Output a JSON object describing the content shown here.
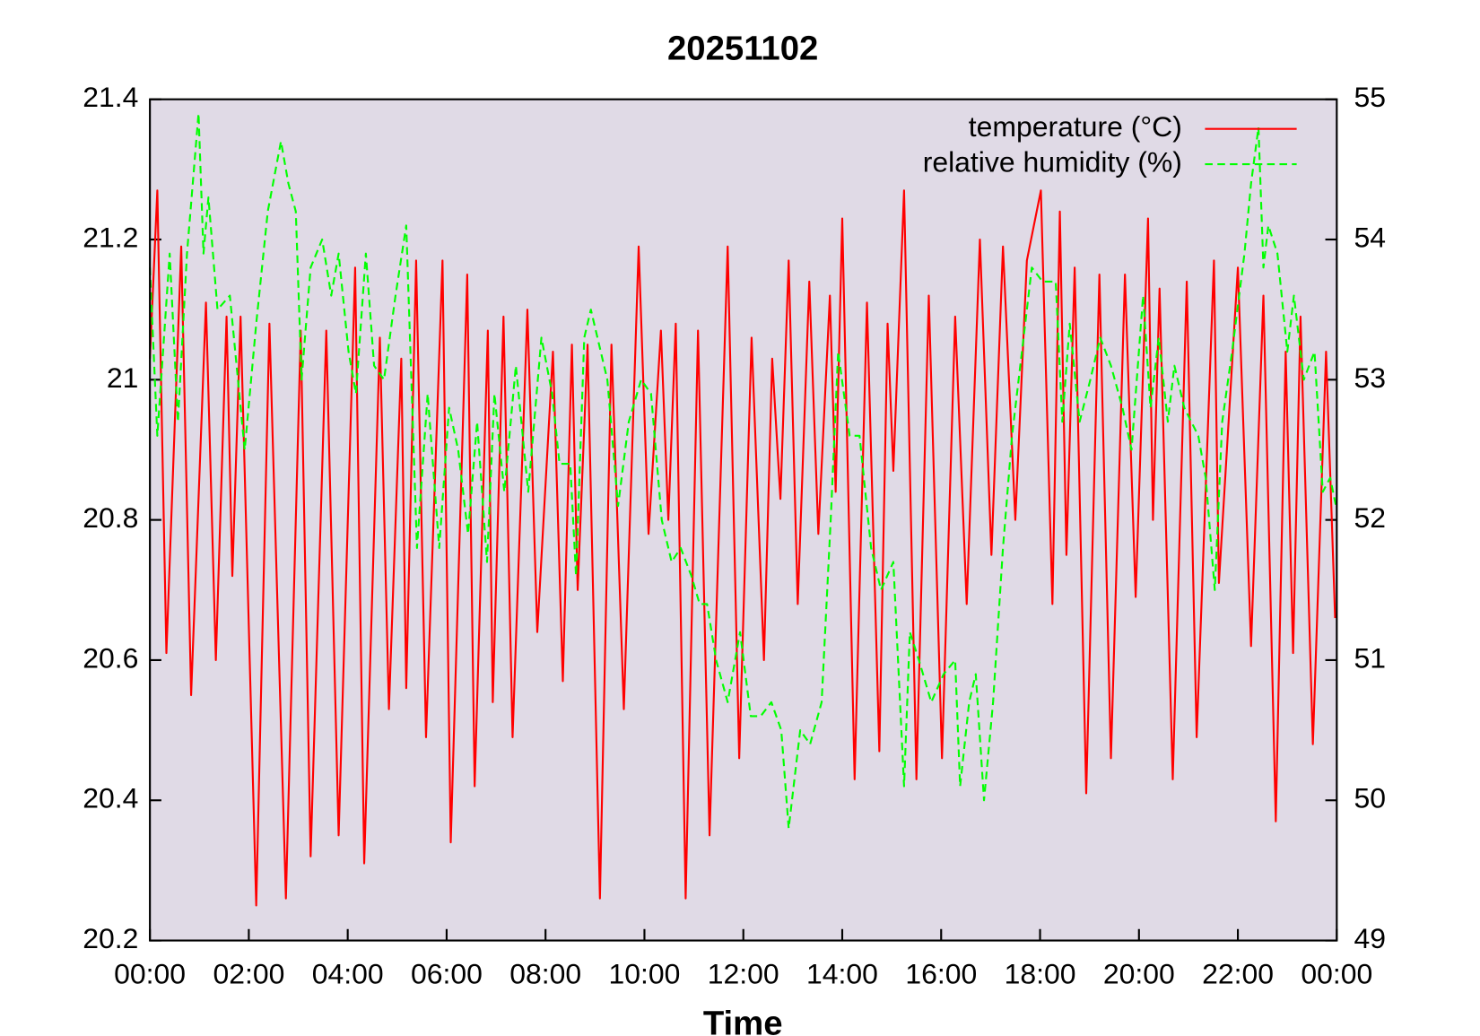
{
  "chart_data": {
    "type": "line",
    "title": "20251102",
    "xlabel": "Time",
    "xlim": [
      0,
      1440
    ],
    "xticks": [
      {
        "value": 0,
        "label": "00:00"
      },
      {
        "value": 120,
        "label": "02:00"
      },
      {
        "value": 240,
        "label": "04:00"
      },
      {
        "value": 360,
        "label": "06:00"
      },
      {
        "value": 480,
        "label": "08:00"
      },
      {
        "value": 600,
        "label": "10:00"
      },
      {
        "value": 720,
        "label": "12:00"
      },
      {
        "value": 840,
        "label": "14:00"
      },
      {
        "value": 960,
        "label": "16:00"
      },
      {
        "value": 1080,
        "label": "18:00"
      },
      {
        "value": 1200,
        "label": "20:00"
      },
      {
        "value": 1320,
        "label": "22:00"
      },
      {
        "value": 1440,
        "label": "00:00"
      }
    ],
    "ylim": [
      20.2,
      21.4
    ],
    "yticks": [
      20.2,
      20.4,
      20.6,
      20.8,
      21,
      21.2,
      21.4
    ],
    "y2lim": [
      49,
      55
    ],
    "y2ticks": [
      49,
      50,
      51,
      52,
      53,
      54,
      55
    ],
    "background": "#e0dae6",
    "legend": "top-right",
    "series": [
      {
        "name": "temperature (°C)",
        "color": "#ff0000",
        "line_style": "solid",
        "x": [
          0,
          9,
          20,
          38,
          50,
          68,
          80,
          93,
          100,
          110,
          129,
          145,
          165,
          183,
          195,
          214,
          229,
          249,
          260,
          279,
          290,
          305,
          311,
          323,
          335,
          355,
          365,
          385,
          394,
          410,
          416,
          429,
          440,
          458,
          470,
          489,
          501,
          512,
          519,
          531,
          546,
          560,
          575,
          593,
          605,
          620,
          629,
          638,
          650,
          665,
          679,
          701,
          715,
          730,
          745,
          755,
          765,
          775,
          786,
          800,
          811,
          825,
          832,
          840,
          855,
          870,
          885,
          895,
          902,
          915,
          930,
          945,
          961,
          977,
          991,
          1007,
          1021,
          1035,
          1050,
          1064,
          1081,
          1095,
          1104,
          1112,
          1122,
          1136,
          1152,
          1166,
          1183,
          1196,
          1211,
          1217,
          1225,
          1241,
          1258,
          1270,
          1291,
          1297,
          1320,
          1336,
          1351,
          1366,
          1378,
          1387,
          1396,
          1411,
          1427,
          1438
        ],
        "values": [
          21.03,
          21.27,
          20.61,
          21.19,
          20.55,
          21.11,
          20.6,
          21.09,
          20.72,
          21.09,
          20.25,
          21.08,
          20.26,
          21.07,
          20.32,
          21.07,
          20.35,
          21.16,
          20.31,
          21.06,
          20.53,
          21.03,
          20.56,
          21.17,
          20.49,
          21.17,
          20.34,
          21.15,
          20.42,
          21.07,
          20.54,
          21.09,
          20.49,
          21.1,
          20.64,
          21.04,
          20.57,
          21.05,
          20.7,
          21.05,
          20.26,
          21.05,
          20.53,
          21.19,
          20.78,
          21.07,
          20.8,
          21.08,
          20.26,
          21.07,
          20.35,
          21.19,
          20.46,
          21.06,
          20.6,
          21.03,
          20.83,
          21.17,
          20.68,
          21.14,
          20.78,
          21.12,
          20.84,
          21.23,
          20.43,
          21.11,
          20.47,
          21.08,
          20.87,
          21.27,
          20.43,
          21.12,
          20.46,
          21.09,
          20.68,
          21.2,
          20.75,
          21.19,
          20.8,
          21.17,
          21.27,
          20.68,
          21.24,
          20.75,
          21.16,
          20.41,
          21.15,
          20.46,
          21.15,
          20.69,
          21.23,
          20.8,
          21.13,
          20.43,
          21.14,
          20.49,
          21.17,
          20.71,
          21.16,
          20.62,
          21.12,
          20.37,
          21.04,
          20.61,
          21.09,
          20.48,
          21.04,
          20.66
        ]
      },
      {
        "name": "relative humidity (%)",
        "color": "#00ff00",
        "line_style": "dashed",
        "axis": "y2",
        "x": [
          0,
          9,
          24,
          34,
          45,
          59,
          65,
          71,
          82,
          97,
          115,
          129,
          143,
          159,
          168,
          177,
          184,
          195,
          209,
          220,
          229,
          241,
          250,
          262,
          272,
          284,
          298,
          311,
          324,
          337,
          351,
          363,
          374,
          386,
          397,
          409,
          418,
          430,
          444,
          459,
          475,
          488,
          497,
          510,
          517,
          527,
          535,
          547,
          555,
          568,
          581,
          596,
          608,
          621,
          633,
          644,
          657,
          667,
          676,
          687,
          701,
          716,
          729,
          741,
          754,
          766,
          775,
          789,
          801,
          815,
          826,
          835,
          849,
          861,
          875,
          887,
          902,
          915,
          922,
          933,
          948,
          963,
          977,
          983,
          994,
          1002,
          1012,
          1023,
          1035,
          1046,
          1058,
          1070,
          1083,
          1099,
          1107,
          1116,
          1128,
          1141,
          1153,
          1166,
          1180,
          1191,
          1205,
          1214,
          1224,
          1235,
          1243,
          1255,
          1272,
          1281,
          1292,
          1301,
          1313,
          1328,
          1336,
          1345,
          1351,
          1357,
          1368,
          1380,
          1388,
          1400,
          1413,
          1423,
          1432,
          1439
        ],
        "values": [
          53.8,
          52.6,
          53.9,
          52.7,
          53.9,
          54.9,
          53.9,
          54.3,
          53.5,
          53.6,
          52.5,
          53.4,
          54.2,
          54.7,
          54.4,
          54.2,
          53.0,
          53.8,
          54.0,
          53.6,
          53.9,
          53.2,
          52.9,
          53.9,
          53.1,
          53.0,
          53.6,
          54.1,
          51.8,
          52.9,
          51.8,
          52.8,
          52.5,
          51.9,
          52.7,
          51.7,
          52.9,
          52.2,
          53.1,
          52.2,
          53.3,
          52.9,
          52.4,
          52.4,
          51.6,
          53.3,
          53.5,
          53.2,
          53.0,
          52.1,
          52.7,
          53.0,
          52.9,
          52.0,
          51.7,
          51.8,
          51.6,
          51.4,
          51.4,
          51.0,
          50.7,
          51.2,
          50.6,
          50.6,
          50.7,
          50.5,
          49.8,
          50.5,
          50.4,
          50.7,
          52.0,
          53.2,
          52.6,
          52.6,
          51.8,
          51.5,
          51.7,
          50.1,
          51.2,
          51.0,
          50.7,
          50.9,
          51.0,
          50.1,
          50.7,
          50.9,
          50.0,
          50.7,
          51.8,
          52.6,
          53.2,
          53.8,
          53.7,
          53.7,
          52.7,
          53.4,
          52.7,
          53.0,
          53.3,
          53.1,
          52.8,
          52.5,
          53.6,
          52.8,
          53.3,
          52.7,
          53.1,
          52.8,
          52.6,
          52.3,
          51.5,
          52.7,
          53.2,
          53.9,
          54.4,
          54.8,
          53.8,
          54.1,
          53.9,
          53.2,
          53.6,
          53.0,
          53.2,
          52.2,
          52.3,
          52.1
        ]
      }
    ]
  }
}
